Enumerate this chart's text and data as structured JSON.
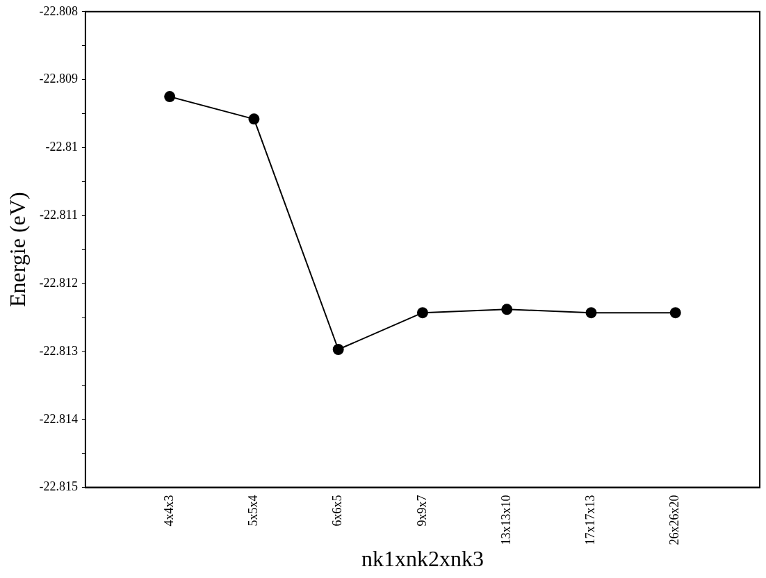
{
  "chart_data": {
    "type": "line",
    "xlabel": "nk1xnk2xnk3",
    "ylabel": "Energie (eV)",
    "categories": [
      "4x4x3",
      "5x5x4",
      "6x6x5",
      "9x9x7",
      "13x13x10",
      "17x17x13",
      "26x26x20"
    ],
    "series": [
      {
        "color": "#000000",
        "values": [
          -22.80925,
          -22.80958,
          -22.81297,
          -22.81243,
          -22.81238,
          -22.81243,
          -22.81243
        ]
      }
    ],
    "ylim": [
      -22.815,
      -22.808
    ],
    "yticks": [
      -22.815,
      {
        "value": -22.8145,
        "label": null
      },
      -22.814,
      {
        "value": -22.8135,
        "label": null
      },
      -22.813,
      {
        "value": -22.8125,
        "label": null
      },
      -22.812,
      {
        "value": -22.8115,
        "label": null
      },
      -22.811,
      {
        "value": -22.8105,
        "label": null
      },
      -22.81,
      {
        "value": -22.8095,
        "label": null
      },
      -22.809,
      {
        "value": -22.8085,
        "label": null
      },
      -22.808
    ],
    "grid": false,
    "legend": false,
    "marker": "circle",
    "line_style": "solid"
  }
}
